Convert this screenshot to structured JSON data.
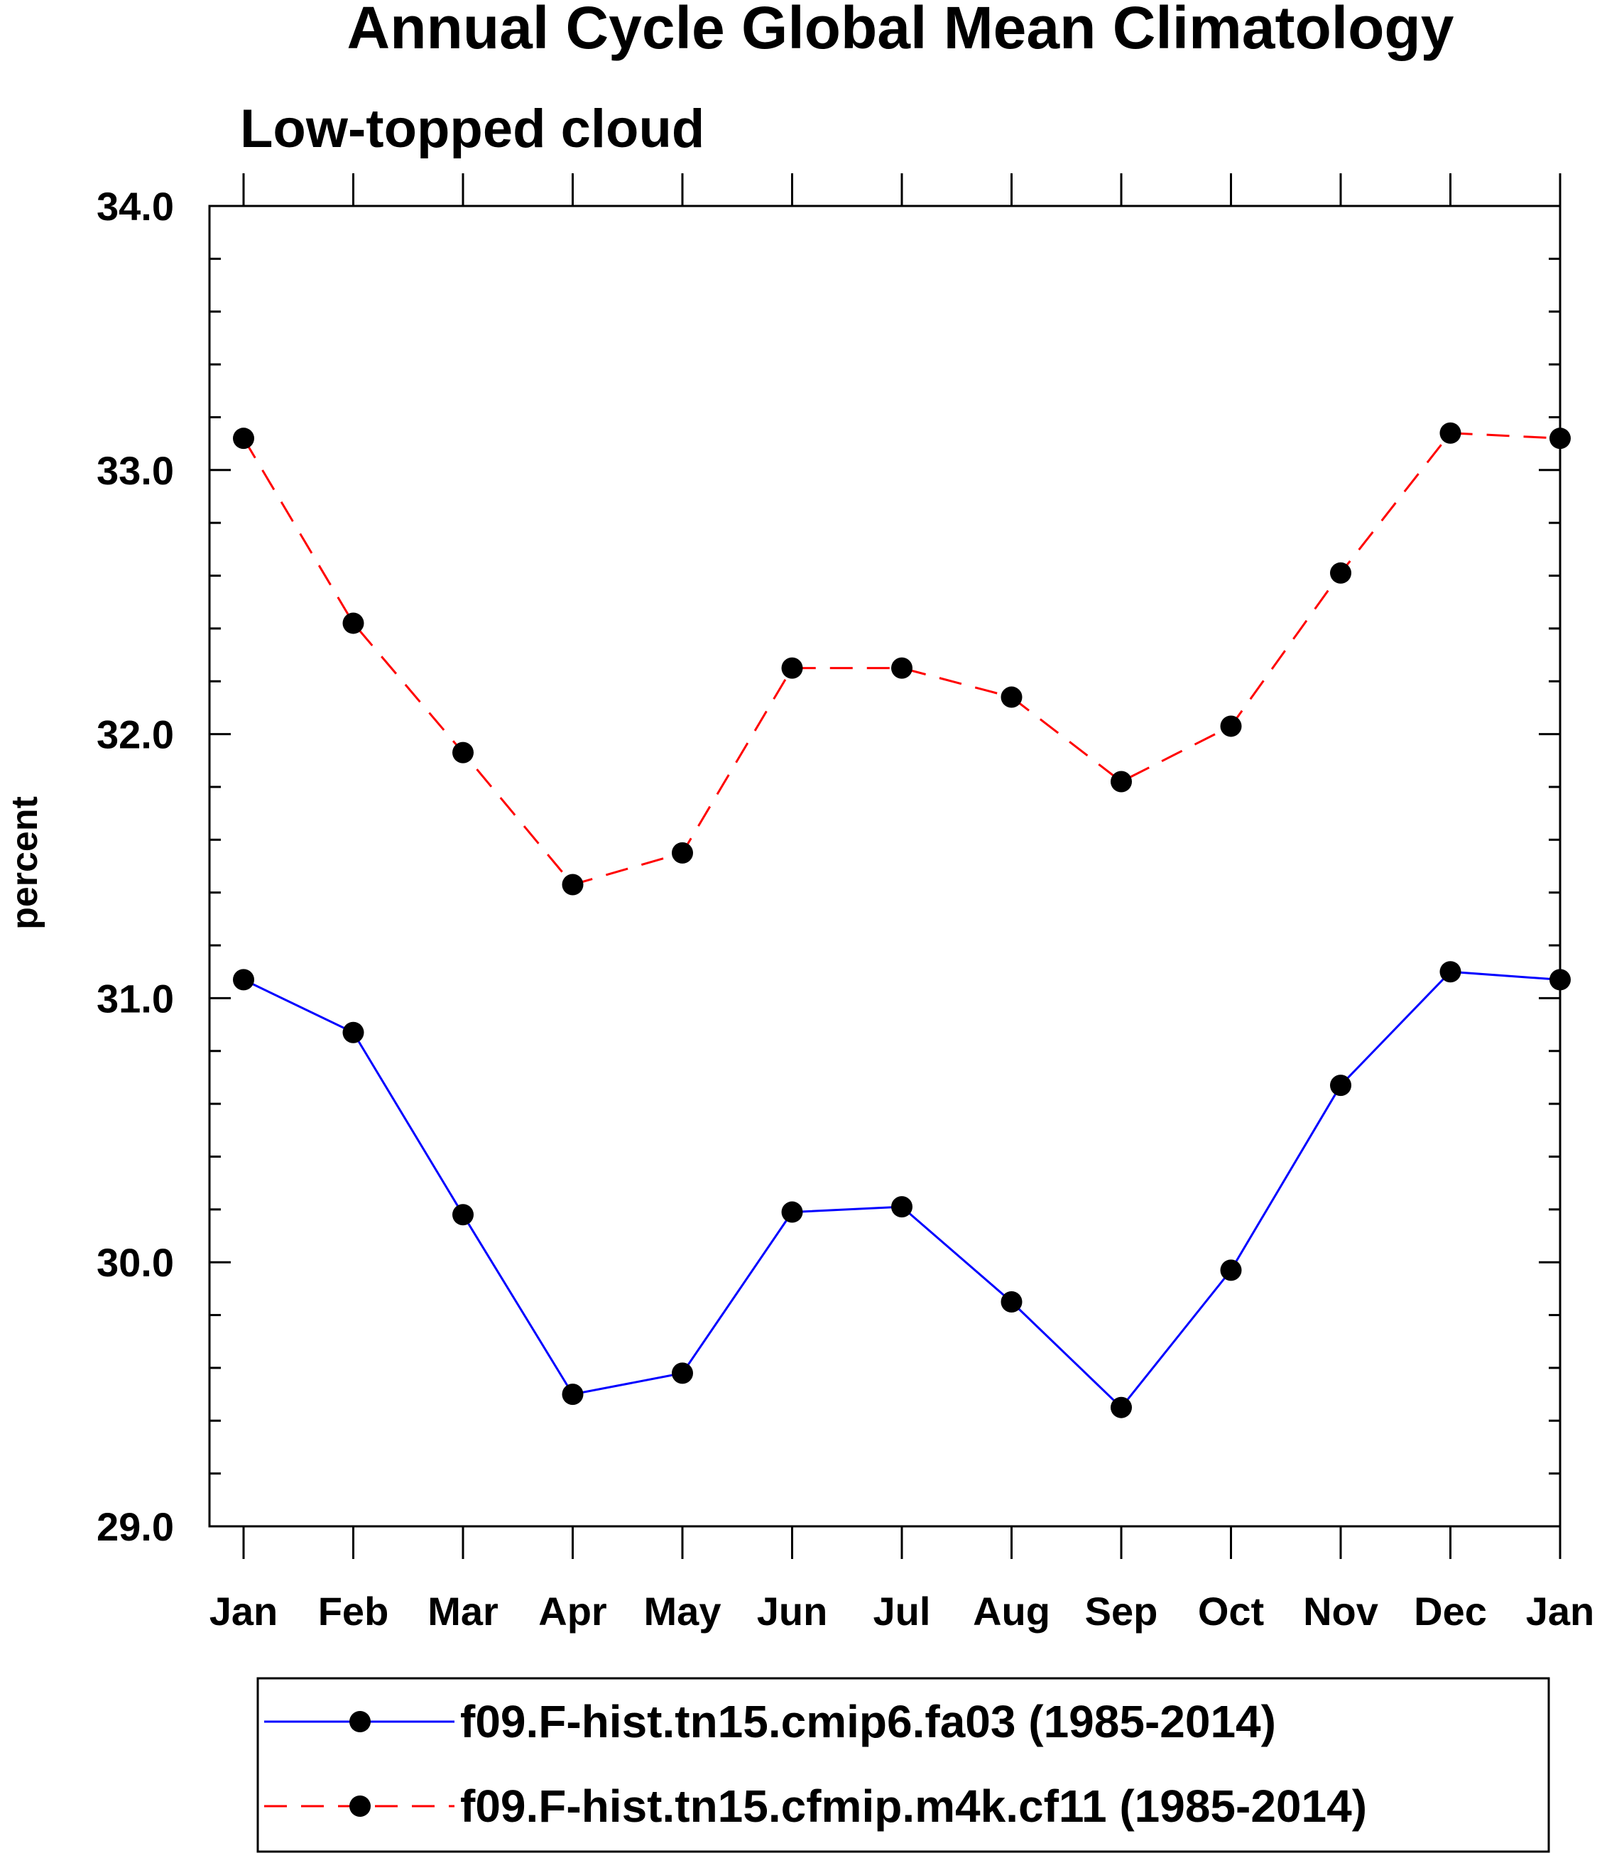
{
  "chart_data": {
    "type": "line",
    "title": "Annual Cycle Global Mean Climatology",
    "subtitle": "Low-topped cloud",
    "xlabel": "",
    "ylabel": "percent",
    "categories": [
      "Jan",
      "Feb",
      "Mar",
      "Apr",
      "May",
      "Jun",
      "Jul",
      "Aug",
      "Sep",
      "Oct",
      "Nov",
      "Dec",
      "Jan"
    ],
    "ylim": [
      29.0,
      34.0
    ],
    "yticks": [
      "29.0",
      "30.0",
      "31.0",
      "32.0",
      "33.0",
      "34.0"
    ],
    "grid": false,
    "legend_position": "bottom",
    "series": [
      {
        "name": "f09.F-hist.tn15.cmip6.fa03 (1985-2014)",
        "color": "#0000ff",
        "dash": "solid",
        "marker": "filled-circle",
        "values": [
          31.07,
          30.87,
          30.18,
          29.5,
          29.58,
          30.19,
          30.21,
          29.85,
          29.45,
          29.97,
          30.67,
          31.1,
          31.07
        ]
      },
      {
        "name": "f09.F-hist.tn15.cfmip.m4k.cf11 (1985-2014)",
        "color": "#ff0000",
        "dash": "dashed",
        "marker": "filled-circle",
        "values": [
          33.12,
          32.42,
          31.93,
          31.43,
          31.55,
          32.25,
          32.25,
          32.14,
          31.82,
          32.03,
          32.61,
          33.14,
          33.12
        ]
      }
    ]
  }
}
